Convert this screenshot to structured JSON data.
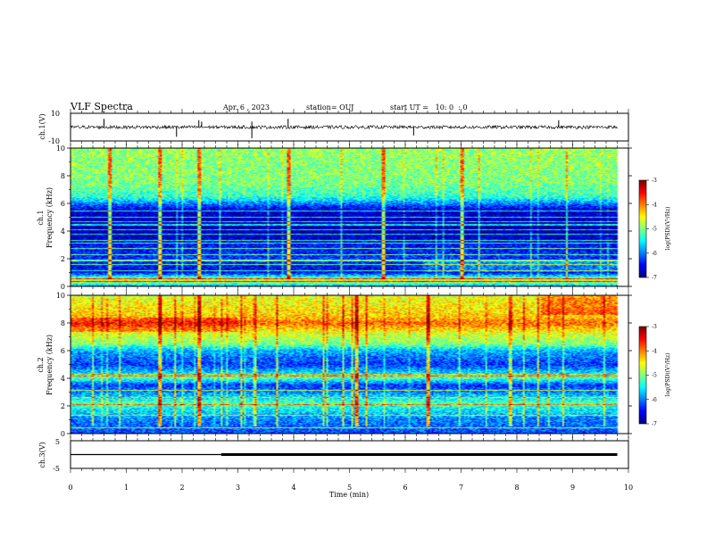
{
  "header": {
    "title": "VLF Spectra",
    "date": "Apr. 6 , 2023",
    "station": "station= OUJ",
    "start": "start UT =   10: 0  : 0"
  },
  "chart_data": [
    {
      "type": "line",
      "panel": "ch1-waveform",
      "ylabel": "ch.1(V)",
      "ylim": [
        -10,
        10
      ],
      "yticks": [
        "10",
        "-10"
      ],
      "x_range_min": [
        0,
        9.8
      ],
      "baseline_v": 0,
      "noise_band_v": [
        -1.2,
        1.2
      ],
      "spikes": [
        {
          "x": 0.6,
          "y": 6
        },
        {
          "x": 1.9,
          "y": -7
        },
        {
          "x": 2.3,
          "y": 5
        },
        {
          "x": 2.35,
          "y": 4
        },
        {
          "x": 3.25,
          "y": -8
        },
        {
          "x": 3.25,
          "y": 4
        },
        {
          "x": 3.9,
          "y": 6
        },
        {
          "x": 6.15,
          "y": -6
        },
        {
          "x": 8.75,
          "y": 5
        }
      ]
    },
    {
      "type": "heatmap",
      "panel": "ch1-spectrogram",
      "ylabel_top": "ch.1",
      "ylabel": "Frequency (kHz)",
      "ylim": [
        0,
        10
      ],
      "yticks": [
        "0",
        "2",
        "4",
        "6",
        "8",
        "10"
      ],
      "x_range_min": [
        0,
        9.8
      ],
      "colorbar_label": "log(PSD)(V²/Hz)",
      "colorbar_ticks": [
        "-3",
        "-4",
        "-5",
        "-6",
        "-7"
      ],
      "levels_by_freq_khz": [
        [
          0.0,
          -5.8
        ],
        [
          0.4,
          -4.5
        ],
        [
          1.0,
          -6.6
        ],
        [
          2.0,
          -6.3
        ],
        [
          3.0,
          -6.5
        ],
        [
          4.0,
          -6.9
        ],
        [
          5.5,
          -6.7
        ],
        [
          6.0,
          -6.0
        ],
        [
          6.5,
          -5.3
        ],
        [
          7.5,
          -5.0
        ],
        [
          10.0,
          -4.9
        ]
      ],
      "narrowband_lines_khz": [
        0.3,
        0.5,
        1.1,
        1.55,
        1.85,
        2.3,
        2.75,
        3.1,
        3.3,
        3.75,
        4.1,
        4.45,
        4.7,
        5.0,
        5.45
      ],
      "impulse_times_min": [
        0.7,
        1.6,
        2.3,
        3.9,
        5.6,
        7.0
      ]
    },
    {
      "type": "heatmap",
      "panel": "ch2-spectrogram",
      "ylabel_top": "ch.2",
      "ylabel": "Frequency (kHz)",
      "ylim": [
        0,
        10
      ],
      "yticks": [
        "0",
        "2",
        "4",
        "6",
        "8",
        "10"
      ],
      "x_range_min": [
        0,
        9.8
      ],
      "colorbar_label": "log(PSD)(V²/Hz)",
      "colorbar_ticks": [
        "-3",
        "-4",
        "-5",
        "-6",
        "-7"
      ],
      "levels_by_freq_khz": [
        [
          0.0,
          -6.2
        ],
        [
          1.0,
          -6.0
        ],
        [
          2.2,
          -5.2
        ],
        [
          3.0,
          -6.0
        ],
        [
          3.5,
          -6.3
        ],
        [
          4.0,
          -5.2
        ],
        [
          5.0,
          -6.3
        ],
        [
          6.0,
          -5.8
        ],
        [
          6.5,
          -5.0
        ],
        [
          7.3,
          -4.6
        ],
        [
          8.0,
          -3.9
        ],
        [
          8.5,
          -4.3
        ],
        [
          9.5,
          -4.5
        ],
        [
          10.0,
          -4.6
        ]
      ],
      "narrowband_lines_khz": [
        0.4,
        1.3,
        2.1,
        2.6,
        3.1,
        4.15,
        4.3
      ],
      "impulse_times_min": [
        1.6,
        2.3,
        5.1,
        6.4
      ]
    },
    {
      "type": "line",
      "panel": "ch3-waveform",
      "ylabel": "ch.3(V)",
      "ylim": [
        -5,
        5
      ],
      "yticks": [
        "5",
        "-5"
      ],
      "x": [
        0,
        2.7,
        2.7,
        9.8
      ],
      "y": [
        0,
        0,
        0,
        0
      ],
      "step_at_min": 2.7
    }
  ],
  "xaxis": {
    "label": "Time (min)",
    "ticks": [
      "0",
      "1",
      "2",
      "3",
      "4",
      "5",
      "6",
      "7",
      "8",
      "9",
      "10"
    ],
    "xlim": [
      0,
      10
    ]
  },
  "colors": {
    "axis": "#000000",
    "background": "#ffffff"
  }
}
